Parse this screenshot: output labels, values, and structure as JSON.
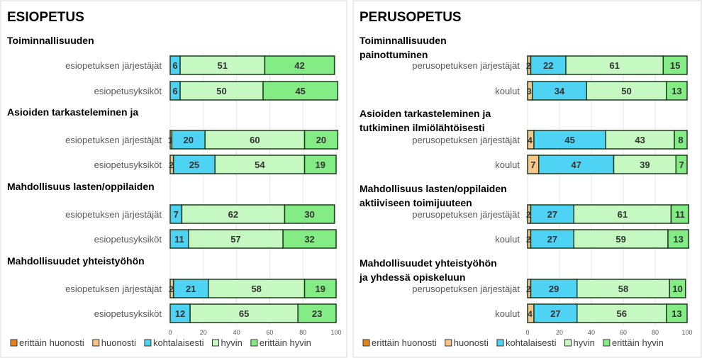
{
  "chart_data": [
    {
      "type": "bar",
      "orientation": "horizontal-stacked",
      "title": "ESIOPETUS",
      "xlim": [
        0,
        100
      ],
      "xticks": [
        "0",
        "20",
        "40",
        "60",
        "80",
        "100"
      ],
      "grid": true,
      "legend_placement": "bottom",
      "series_names": [
        "erittäin huonosti",
        "huonosti",
        "kohtalaisesti",
        "hyvin",
        "erittäin hyvin"
      ],
      "groups": [
        {
          "title": [
            "Toiminnallisuuden"
          ],
          "rows": [
            {
              "label": "esiopetuksen järjestäjät",
              "values": [
                0,
                0,
                6,
                51,
                42
              ]
            },
            {
              "label": "esiopetusyksiköt",
              "values": [
                0,
                0,
                6,
                50,
                45
              ]
            }
          ]
        },
        {
          "title": [
            "Asioiden tarkasteleminen ja"
          ],
          "rows": [
            {
              "label": "esiopetuksen järjestäjät",
              "values": [
                0,
                1,
                20,
                60,
                20
              ]
            },
            {
              "label": "esiopetusyksiköt",
              "values": [
                0,
                2,
                25,
                54,
                19
              ]
            }
          ]
        },
        {
          "title": [
            "Mahdollisuus lasten/oppilaiden"
          ],
          "rows": [
            {
              "label": "esiopetuksen järjestäjät",
              "values": [
                0,
                0,
                7,
                62,
                30
              ]
            },
            {
              "label": "esiopetusyksiköt",
              "values": [
                0,
                0,
                11,
                57,
                32
              ]
            }
          ]
        },
        {
          "title": [
            "Mahdollisuudet yhteistyöhön"
          ],
          "rows": [
            {
              "label": "esiopetuksen järjestäjät",
              "values": [
                0,
                2,
                21,
                58,
                19
              ]
            },
            {
              "label": "esiopetusyksiköt",
              "values": [
                0,
                0,
                12,
                65,
                23
              ]
            }
          ]
        }
      ]
    },
    {
      "type": "bar",
      "orientation": "horizontal-stacked",
      "title": "PERUSOPETUS",
      "xlim": [
        0,
        100
      ],
      "xticks": [
        "0",
        "20",
        "40",
        "60",
        "80",
        "100"
      ],
      "grid": true,
      "legend_placement": "bottom",
      "series_names": [
        "erittäin huonosti",
        "huonosti",
        "kohtalaisesti",
        "hyvin",
        "erittäin hyvin"
      ],
      "groups": [
        {
          "title": [
            "Toiminnallisuuden",
            "painottuminen"
          ],
          "rows": [
            {
              "label": "perusopetuksen järjestäjät",
              "values": [
                0,
                2,
                22,
                61,
                15
              ]
            },
            {
              "label": "koulut",
              "values": [
                0,
                3,
                34,
                50,
                13
              ]
            }
          ]
        },
        {
          "title": [
            "Asioiden tarkasteleminen ja",
            "tutkiminen ilmiölähtöisesti"
          ],
          "rows": [
            {
              "label": "perusopetuksen järjestäjät",
              "values": [
                0,
                4,
                45,
                43,
                8
              ]
            },
            {
              "label": "koulut",
              "values": [
                0,
                7,
                47,
                39,
                7
              ]
            }
          ]
        },
        {
          "title": [
            "Mahdollisuus lasten/oppilaiden",
            "aktiiviseen toimijuuteen"
          ],
          "rows": [
            {
              "label": "perusopetuksen järjestäjät",
              "values": [
                0,
                2,
                27,
                61,
                11
              ]
            },
            {
              "label": "koulut",
              "values": [
                0,
                2,
                27,
                59,
                13
              ]
            }
          ]
        },
        {
          "title": [
            "Mahdollisuudet yhteistyöhön",
            "ja yhdessä opiskeluun"
          ],
          "rows": [
            {
              "label": "perusopetuksen järjestäjät",
              "values": [
                0,
                2,
                29,
                58,
                10
              ]
            },
            {
              "label": "koulut",
              "values": [
                0,
                4,
                27,
                56,
                13
              ]
            }
          ]
        }
      ]
    }
  ],
  "colors": [
    "#e8841c",
    "#f7c587",
    "#4fd3f5",
    "#c6f9c2",
    "#84ec84"
  ]
}
